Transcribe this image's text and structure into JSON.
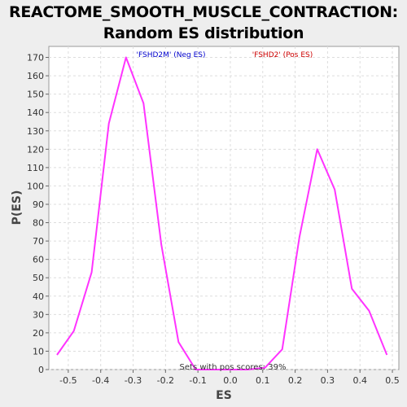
{
  "chart_data": {
    "type": "line",
    "title": "REACTOME_SMOOTH_MUSCLE_CONTRACTION:\nRandom ES distribution",
    "xlabel": "ES",
    "ylabel": "P(ES)",
    "xlim": [
      -0.56,
      0.52
    ],
    "ylim": [
      0,
      176
    ],
    "x_ticks": [
      -0.5,
      -0.4,
      -0.3,
      -0.2,
      -0.1,
      0.0,
      0.1,
      0.2,
      0.3,
      0.4,
      0.5
    ],
    "x_tick_labels": [
      "-0.5",
      "-0.4",
      "-0.3",
      "-0.2",
      "-0.1",
      "0.0",
      "0.1",
      "0.2",
      "0.3",
      "0.4",
      "0.5"
    ],
    "y_ticks": [
      0,
      10,
      20,
      30,
      40,
      50,
      60,
      70,
      80,
      90,
      100,
      110,
      120,
      130,
      140,
      150,
      160,
      170
    ],
    "grid": true,
    "series": [
      {
        "color": "#ff33ff",
        "x": [
          -0.535,
          -0.483,
          -0.428,
          -0.375,
          -0.322,
          -0.268,
          -0.213,
          -0.16,
          -0.107,
          -0.053,
          0.0,
          0.053,
          0.107,
          0.16,
          0.213,
          0.268,
          0.322,
          0.375,
          0.428,
          0.483
        ],
        "y": [
          8,
          21,
          53,
          134,
          170,
          145,
          68,
          15,
          0,
          0,
          0,
          0,
          1,
          11,
          72,
          120,
          98,
          44,
          32,
          8
        ]
      }
    ],
    "legend": {
      "neg_label": "'FSHD2M' (Neg ES)",
      "neg_color": "#0000cc",
      "pos_label": "'FSHD2' (Pos ES)",
      "pos_color": "#cc0000"
    },
    "annotation": "Sets with pos scores: 39%"
  }
}
